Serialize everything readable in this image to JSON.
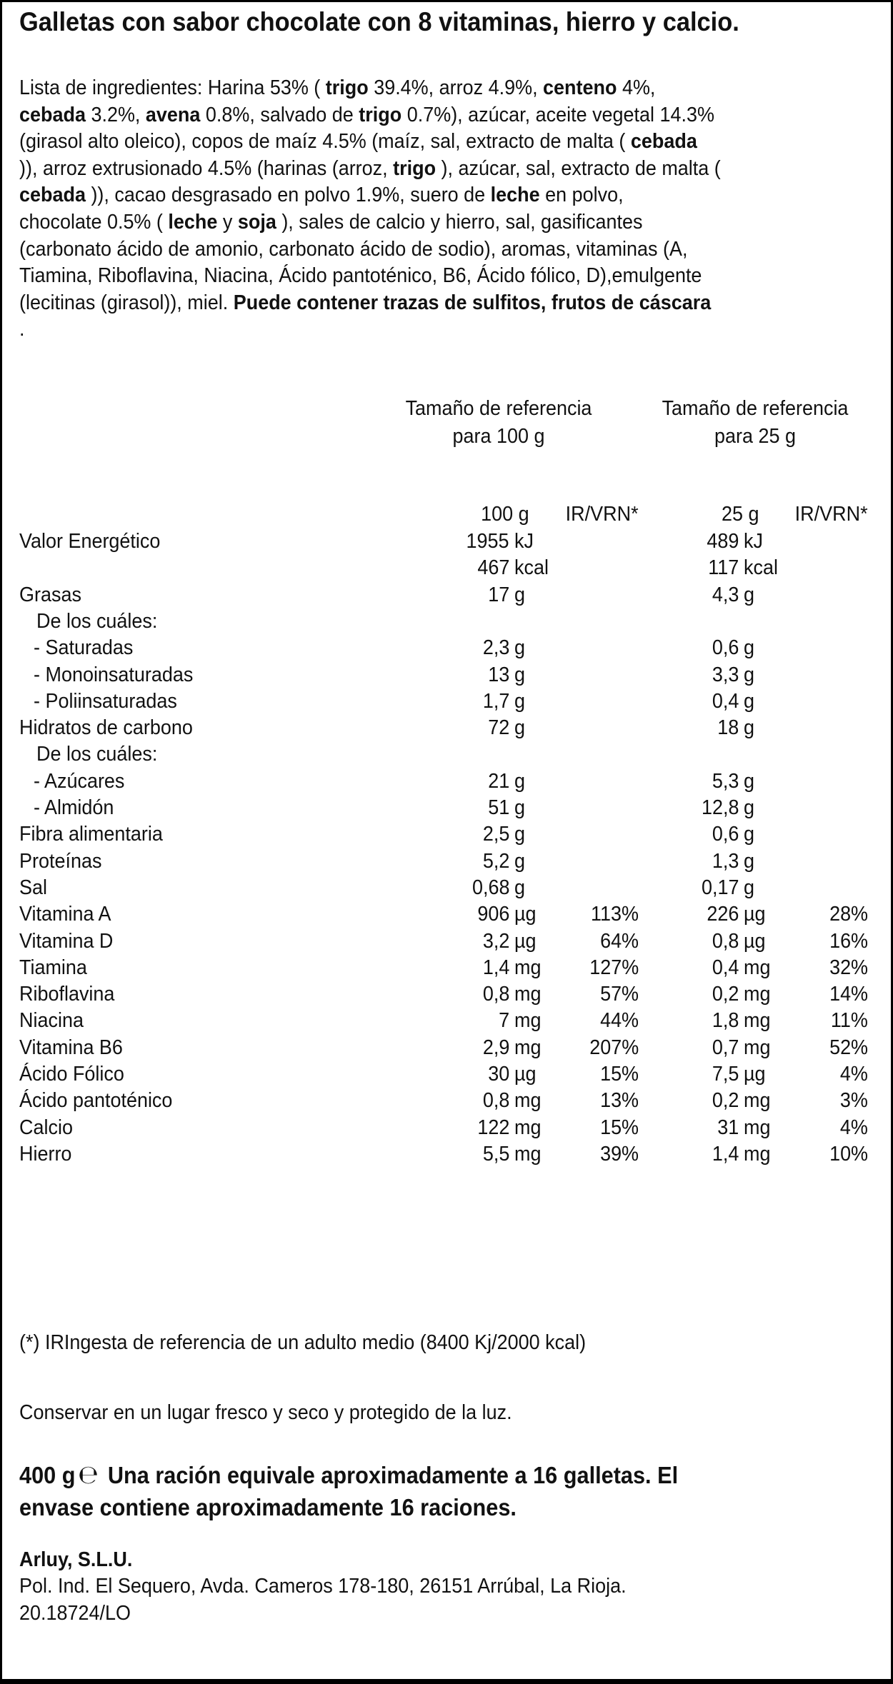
{
  "title": "Galletas con sabor chocolate con 8 vitaminas, hierro y calcio.",
  "ingredients": {
    "lines": [
      [
        {
          "t": "Lista de ingredientes: Harina 53% ( "
        },
        {
          "t": "trigo",
          "b": true
        },
        {
          "t": " 39.4%, arroz 4.9%, "
        },
        {
          "t": "centeno",
          "b": true
        },
        {
          "t": " 4%,"
        }
      ],
      [
        {
          "t": "cebada",
          "b": true
        },
        {
          "t": " 3.2%, "
        },
        {
          "t": "avena",
          "b": true
        },
        {
          "t": " 0.8%, salvado de "
        },
        {
          "t": "trigo",
          "b": true
        },
        {
          "t": " 0.7%), azúcar, aceite vegetal 14.3%"
        }
      ],
      [
        {
          "t": "(girasol alto oleico), copos de maíz 4.5% (maíz, sal, extracto de malta ( "
        },
        {
          "t": "cebada",
          "b": true
        }
      ],
      [
        {
          "t": ")), arroz extrusionado 4.5% (harinas (arroz, "
        },
        {
          "t": "trigo",
          "b": true
        },
        {
          "t": " ), azúcar, sal, extracto de malta ("
        }
      ],
      [
        {
          "t": "cebada",
          "b": true
        },
        {
          "t": " )), cacao desgrasado en polvo 1.9%, suero de "
        },
        {
          "t": "leche",
          "b": true
        },
        {
          "t": " en polvo,"
        }
      ],
      [
        {
          "t": "chocolate 0.5% ( "
        },
        {
          "t": "leche",
          "b": true
        },
        {
          "t": " y "
        },
        {
          "t": "soja",
          "b": true
        },
        {
          "t": " ), sales de calcio y hierro, sal, gasificantes"
        }
      ],
      [
        {
          "t": "(carbonato ácido de amonio, carbonato ácido de sodio), aromas, vitaminas (A,"
        }
      ],
      [
        {
          "t": "Tiamina, Riboflavina, Niacina, Ácido pantoténico, B6, Ácido fólico, D),emulgente"
        }
      ],
      [
        {
          "t": "(lecitinas (girasol)), miel. "
        },
        {
          "t": "Puede contener trazas de sulfitos, frutos de cáscara",
          "b": true
        }
      ],
      [
        {
          "t": "."
        }
      ]
    ]
  },
  "nutrition": {
    "ref_headers": [
      {
        "line1": "Tamaño de referencia",
        "line2": "para 100 g"
      },
      {
        "line1": "Tamaño de referencia",
        "line2": "para 25 g"
      }
    ],
    "col_headers": {
      "q100": "100 g",
      "ir100": "IR/VRN*",
      "q25": "25 g",
      "ir25": "IR/VRN*"
    },
    "rows": [
      {
        "label": "Valor  Energético",
        "indent": 0,
        "v100": "1955",
        "u100": "kJ",
        "ir100": "",
        "v25": "489",
        "u25": "kJ",
        "ir25": ""
      },
      {
        "label": "",
        "indent": 0,
        "v100": "467",
        "u100": "kcal",
        "ir100": "",
        "v25": "117",
        "u25": "kcal",
        "ir25": ""
      },
      {
        "label": "Grasas",
        "indent": 0,
        "v100": "17",
        "u100": "g",
        "ir100": "",
        "v25": "4,3",
        "u25": "g",
        "ir25": ""
      },
      {
        "label": "De los cuáles:",
        "indent": 2,
        "v100": "",
        "u100": "",
        "ir100": "",
        "v25": "",
        "u25": "",
        "ir25": ""
      },
      {
        "label": "-  Saturadas",
        "indent": 1,
        "v100": "2,3",
        "u100": "g",
        "ir100": "",
        "v25": "0,6",
        "u25": "g",
        "ir25": ""
      },
      {
        "label": "-  Monoinsaturadas",
        "indent": 1,
        "v100": "13",
        "u100": "g",
        "ir100": "",
        "v25": "3,3",
        "u25": "g",
        "ir25": ""
      },
      {
        "label": "-  Poliinsaturadas",
        "indent": 1,
        "v100": "1,7",
        "u100": "g",
        "ir100": "",
        "v25": "0,4",
        "u25": "g",
        "ir25": ""
      },
      {
        "label": "Hidratos  de  carbono",
        "indent": 0,
        "v100": "72",
        "u100": "g",
        "ir100": "",
        "v25": "18",
        "u25": "g",
        "ir25": ""
      },
      {
        "label": "De los cuáles:",
        "indent": 2,
        "v100": "",
        "u100": "",
        "ir100": "",
        "v25": "",
        "u25": "",
        "ir25": ""
      },
      {
        "label": "- Azúcares",
        "indent": 1,
        "v100": "21",
        "u100": "g",
        "ir100": "",
        "v25": "5,3",
        "u25": "g",
        "ir25": ""
      },
      {
        "label": "- Almidón",
        "indent": 1,
        "v100": "51",
        "u100": "g",
        "ir100": "",
        "v25": "12,8",
        "u25": "g",
        "ir25": ""
      },
      {
        "label": "Fibra  alimentaria",
        "indent": 0,
        "v100": "2,5",
        "u100": "g",
        "ir100": "",
        "v25": "0,6",
        "u25": "g",
        "ir25": ""
      },
      {
        "label": "Proteínas",
        "indent": 0,
        "v100": "5,2",
        "u100": "g",
        "ir100": "",
        "v25": "1,3",
        "u25": "g",
        "ir25": ""
      },
      {
        "label": "Sal",
        "indent": 0,
        "v100": "0,68",
        "u100": "g",
        "ir100": "",
        "v25": "0,17",
        "u25": "g",
        "ir25": ""
      },
      {
        "label": "Vitamina  A",
        "indent": 0,
        "v100": "906",
        "u100": "µg",
        "ir100": "113%",
        "v25": "226",
        "u25": "µg",
        "ir25": "28%"
      },
      {
        "label": "Vitamina  D",
        "indent": 0,
        "v100": "3,2",
        "u100": "µg",
        "ir100": "64%",
        "v25": "0,8",
        "u25": "µg",
        "ir25": "16%"
      },
      {
        "label": "Tiamina",
        "indent": 0,
        "v100": "1,4",
        "u100": "mg",
        "ir100": "127%",
        "v25": "0,4",
        "u25": "mg",
        "ir25": "32%"
      },
      {
        "label": "Riboflavina",
        "indent": 0,
        "v100": "0,8",
        "u100": "mg",
        "ir100": "57%",
        "v25": "0,2",
        "u25": "mg",
        "ir25": "14%"
      },
      {
        "label": "Niacina",
        "indent": 0,
        "v100": "7",
        "u100": "mg",
        "ir100": "44%",
        "v25": "1,8",
        "u25": "mg",
        "ir25": "11%"
      },
      {
        "label": "Vitamina  B6",
        "indent": 0,
        "v100": "2,9",
        "u100": "mg",
        "ir100": "207%",
        "v25": "0,7",
        "u25": "mg",
        "ir25": "52%"
      },
      {
        "label": "Ácido  Fólico",
        "indent": 0,
        "v100": "30",
        "u100": "µg",
        "ir100": "15%",
        "v25": "7,5",
        "u25": "µg",
        "ir25": "4%"
      },
      {
        "label": "Ácido  pantoténico",
        "indent": 0,
        "v100": "0,8",
        "u100": "mg",
        "ir100": "13%",
        "v25": "0,2",
        "u25": "mg",
        "ir25": "3%"
      },
      {
        "label": "Calcio",
        "indent": 0,
        "v100": "122",
        "u100": "mg",
        "ir100": "15%",
        "v25": "31",
        "u25": "mg",
        "ir25": "4%"
      },
      {
        "label": "Hierro",
        "indent": 0,
        "v100": "5,5",
        "u100": "mg",
        "ir100": "39%",
        "v25": "1,4",
        "u25": "mg",
        "ir25": "10%"
      }
    ],
    "footnote": "(*) IRIngesta de referencia de un adulto medio  (8400 Kj/2000 kcal)"
  },
  "storage": "Conservar en un lugar fresco y seco y protegido de la luz.",
  "portion": {
    "weight": "400 g",
    "estimated_sign_icon": "estimated-sign",
    "line1": "Una ración equivale aproximadamente a 16 galletas. El",
    "line2": "envase contiene aproximadamente 16 raciones."
  },
  "company": {
    "name": "Arluy, S.L.U.",
    "address": "Pol. Ind. El Sequero, Avda. Cameros 178-180, 26151 Arrúbal, La Rioja.",
    "code": "20.18724/LO"
  }
}
